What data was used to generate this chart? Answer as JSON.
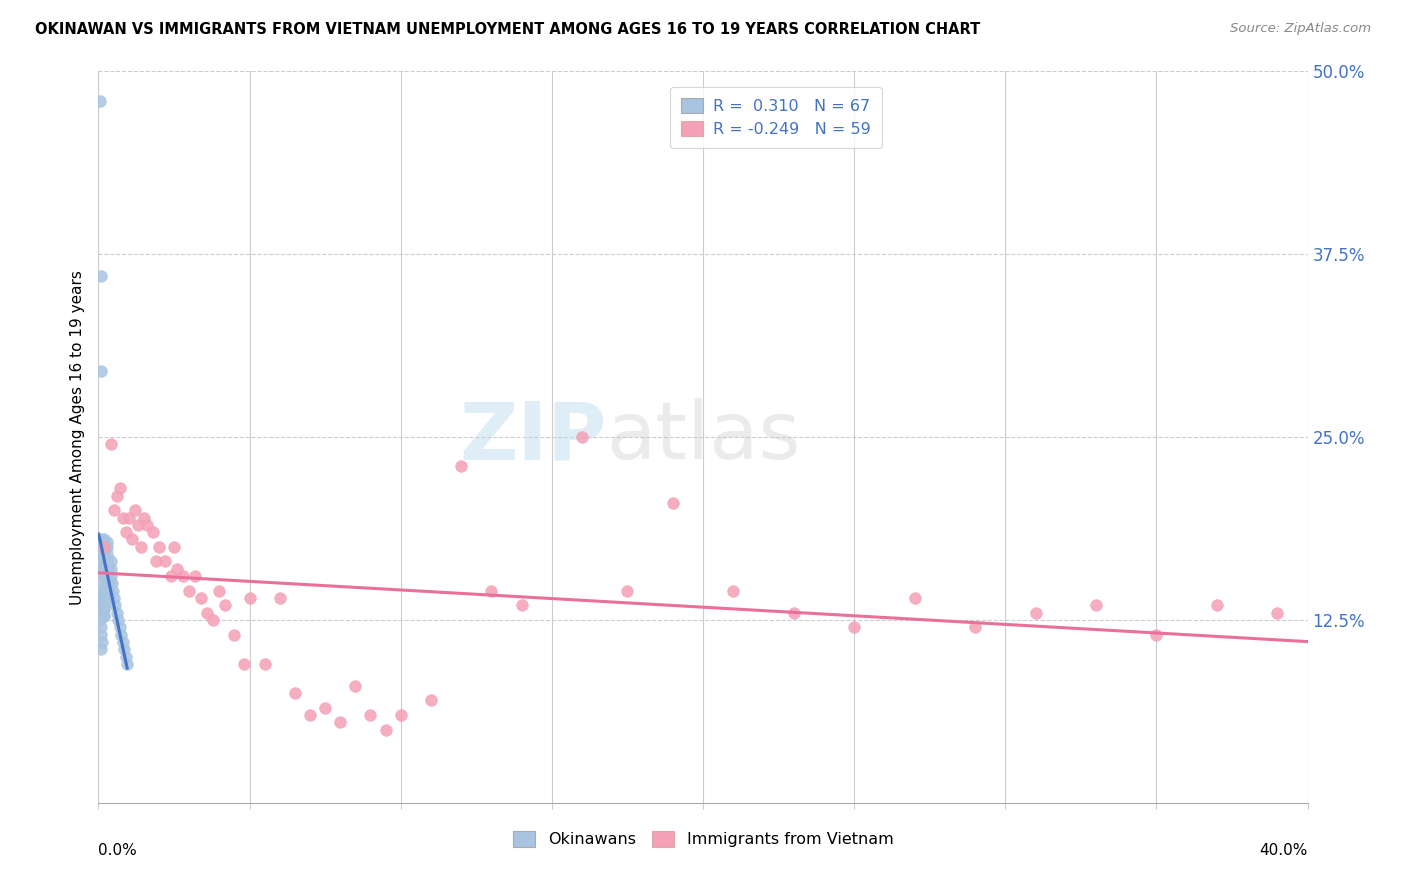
{
  "title": "OKINAWAN VS IMMIGRANTS FROM VIETNAM UNEMPLOYMENT AMONG AGES 16 TO 19 YEARS CORRELATION CHART",
  "source": "Source: ZipAtlas.com",
  "ylabel": "Unemployment Among Ages 16 to 19 years",
  "watermark_zip": "ZIP",
  "watermark_atlas": "atlas",
  "okinawan_color": "#a8c4e0",
  "okinawan_edge": "#7aadd4",
  "vietnam_color": "#f4a0b5",
  "vietnam_edge": "#e87090",
  "trend_blue": "#4472c4",
  "trend_pink": "#e8709a",
  "legend_blue_text": "#4472c4",
  "okinawan_scatter_x": [
    0.0005,
    0.0008,
    0.001,
    0.001,
    0.001,
    0.001,
    0.0012,
    0.0012,
    0.0015,
    0.0015,
    0.0015,
    0.0015,
    0.0018,
    0.0018,
    0.0018,
    0.002,
    0.002,
    0.002,
    0.002,
    0.002,
    0.0022,
    0.0022,
    0.0025,
    0.0025,
    0.0025,
    0.0028,
    0.0028,
    0.003,
    0.003,
    0.003,
    0.003,
    0.0032,
    0.0032,
    0.0035,
    0.0035,
    0.0038,
    0.004,
    0.004,
    0.0042,
    0.0045,
    0.0048,
    0.005,
    0.0055,
    0.006,
    0.0065,
    0.007,
    0.0075,
    0.008,
    0.0085,
    0.009,
    0.0095,
    0.001,
    0.0012,
    0.0008,
    0.0015,
    0.002,
    0.0025,
    0.003,
    0.0035,
    0.001,
    0.0015,
    0.002,
    0.0005,
    0.001,
    0.0008,
    0.0012,
    0.001
  ],
  "okinawan_scatter_y": [
    0.48,
    0.36,
    0.295,
    0.18,
    0.175,
    0.17,
    0.16,
    0.155,
    0.148,
    0.145,
    0.142,
    0.138,
    0.135,
    0.132,
    0.128,
    0.18,
    0.178,
    0.172,
    0.168,
    0.162,
    0.158,
    0.155,
    0.152,
    0.148,
    0.145,
    0.142,
    0.138,
    0.178,
    0.175,
    0.17,
    0.165,
    0.16,
    0.155,
    0.15,
    0.145,
    0.14,
    0.165,
    0.16,
    0.155,
    0.15,
    0.145,
    0.14,
    0.135,
    0.13,
    0.125,
    0.12,
    0.115,
    0.11,
    0.105,
    0.1,
    0.095,
    0.178,
    0.172,
    0.168,
    0.162,
    0.158,
    0.152,
    0.148,
    0.142,
    0.138,
    0.132,
    0.128,
    0.125,
    0.12,
    0.115,
    0.11,
    0.105
  ],
  "vietnam_scatter_x": [
    0.002,
    0.004,
    0.005,
    0.006,
    0.007,
    0.008,
    0.009,
    0.01,
    0.011,
    0.012,
    0.013,
    0.014,
    0.015,
    0.016,
    0.018,
    0.019,
    0.02,
    0.022,
    0.024,
    0.025,
    0.026,
    0.028,
    0.03,
    0.032,
    0.034,
    0.036,
    0.038,
    0.04,
    0.042,
    0.045,
    0.048,
    0.05,
    0.055,
    0.06,
    0.065,
    0.07,
    0.075,
    0.08,
    0.085,
    0.09,
    0.095,
    0.1,
    0.11,
    0.12,
    0.13,
    0.14,
    0.16,
    0.175,
    0.19,
    0.21,
    0.23,
    0.25,
    0.27,
    0.29,
    0.31,
    0.33,
    0.35,
    0.37,
    0.39
  ],
  "vietnam_scatter_y": [
    0.175,
    0.245,
    0.2,
    0.21,
    0.215,
    0.195,
    0.185,
    0.195,
    0.18,
    0.2,
    0.19,
    0.175,
    0.195,
    0.19,
    0.185,
    0.165,
    0.175,
    0.165,
    0.155,
    0.175,
    0.16,
    0.155,
    0.145,
    0.155,
    0.14,
    0.13,
    0.125,
    0.145,
    0.135,
    0.115,
    0.095,
    0.14,
    0.095,
    0.14,
    0.075,
    0.06,
    0.065,
    0.055,
    0.08,
    0.06,
    0.05,
    0.06,
    0.07,
    0.23,
    0.145,
    0.135,
    0.25,
    0.145,
    0.205,
    0.145,
    0.13,
    0.12,
    0.14,
    0.12,
    0.13,
    0.135,
    0.115,
    0.135,
    0.13
  ],
  "xlim": [
    0.0,
    0.4
  ],
  "ylim": [
    0.0,
    0.5
  ],
  "right_ytick_vals": [
    0.125,
    0.25,
    0.375,
    0.5
  ],
  "right_ytick_labels": [
    "12.5%",
    "25.0%",
    "37.5%",
    "50.0%"
  ],
  "figsize": [
    14.06,
    8.92
  ],
  "dpi": 100
}
